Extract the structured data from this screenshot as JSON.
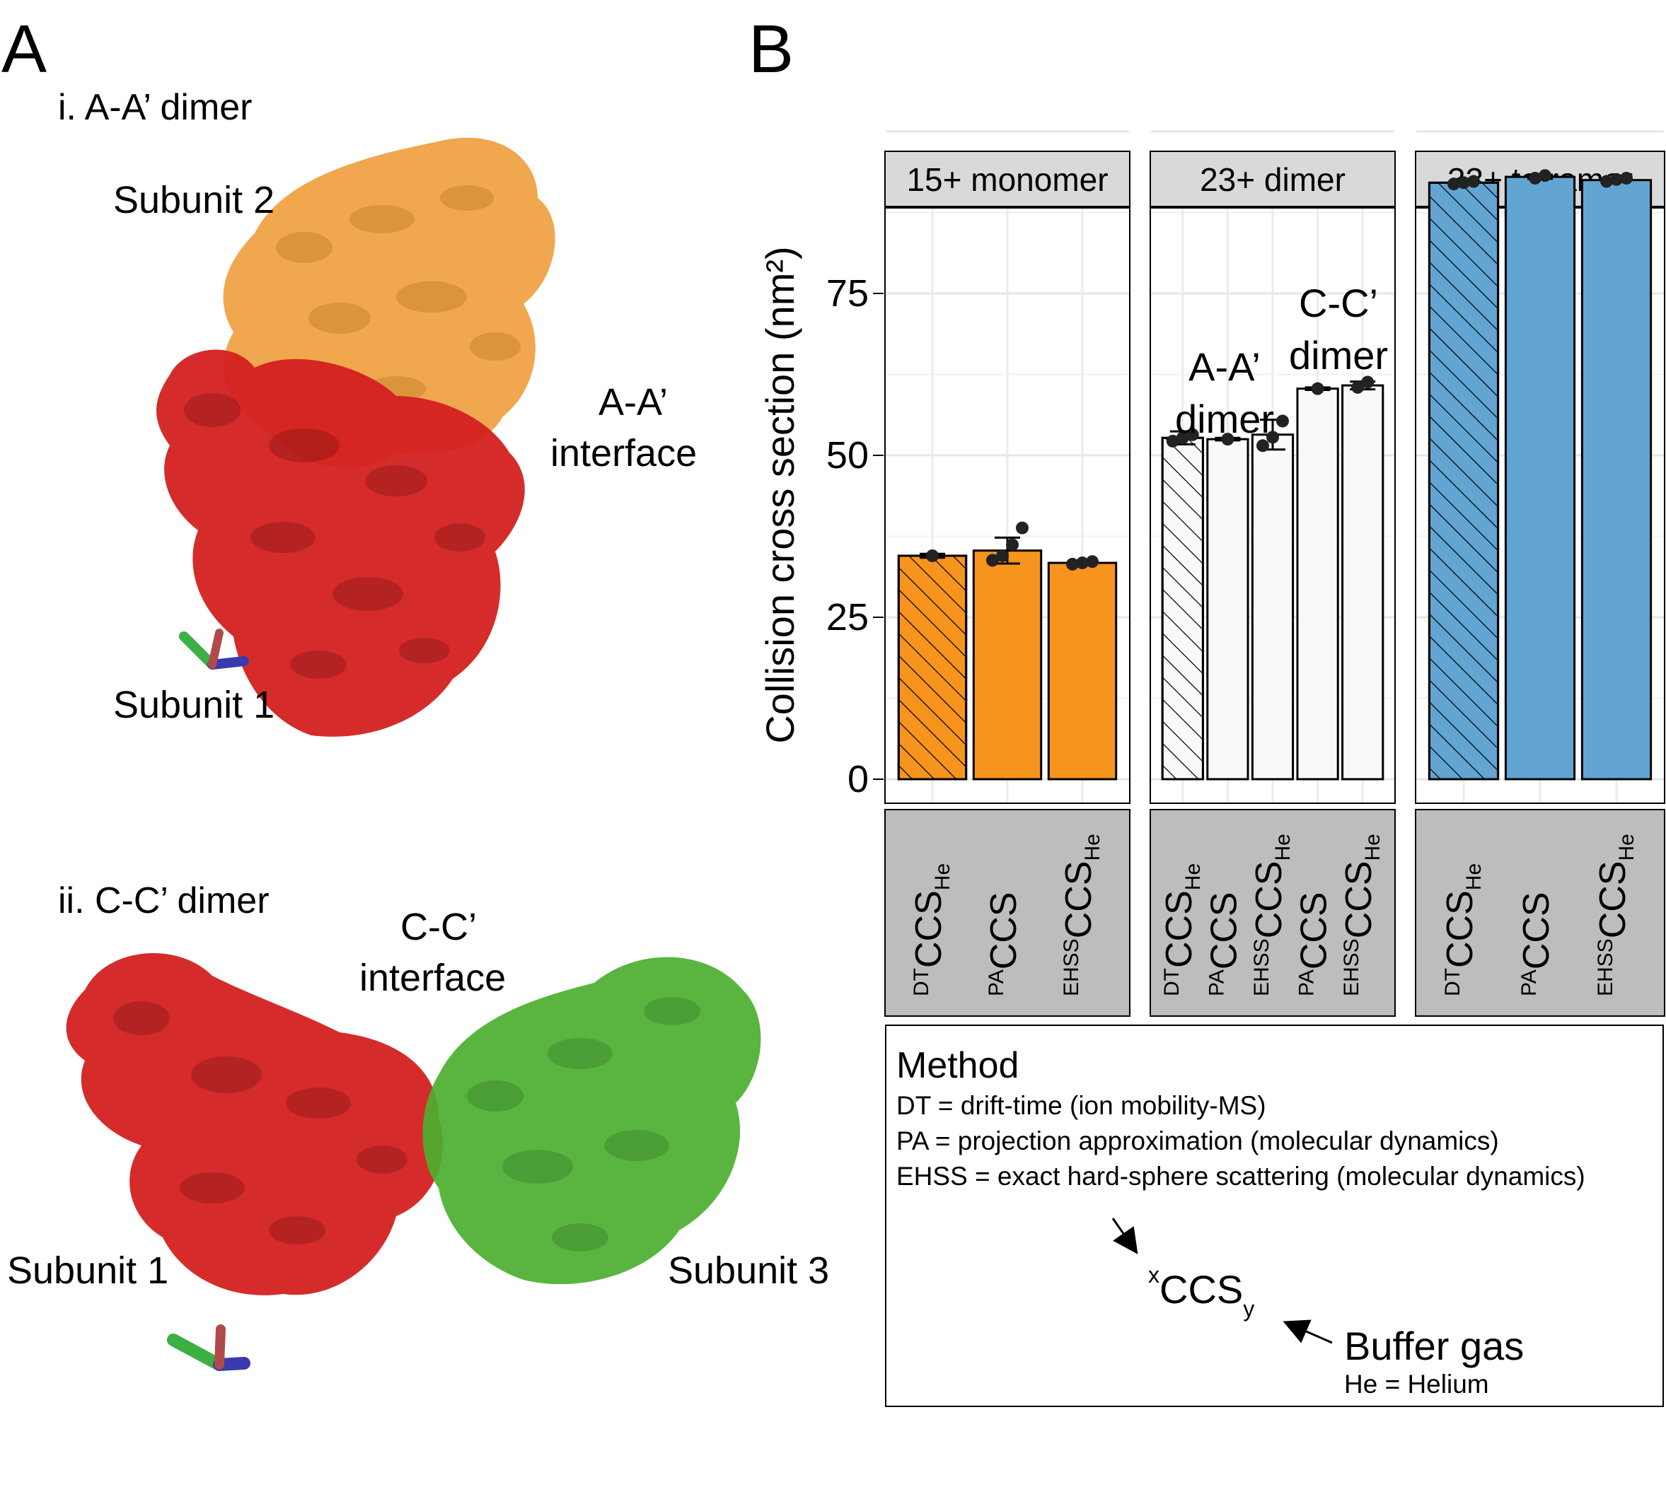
{
  "panel_a": {
    "letter": "A",
    "dimer1": {
      "title": "i. A-A’ dimer",
      "subunit_top": "Subunit 2",
      "subunit_bottom": "Subunit 1",
      "interface_line1": "A-A’",
      "interface_line2": "interface",
      "colors": {
        "subunit_2": "#f0a040",
        "subunit_1": "#d42020"
      }
    },
    "dimer2": {
      "title": "ii. C-C’ dimer",
      "interface_line1": "C-C’",
      "interface_line2": "interface",
      "subunit_left": "Subunit 1",
      "subunit_right": "Subunit 3",
      "colors": {
        "subunit_1": "#d42020",
        "subunit_3": "#4caf30"
      }
    }
  },
  "panel_b": {
    "letter": "B"
  },
  "chart_data": {
    "type": "bar",
    "ylabel": "Collision cross section (nm²)",
    "ylim": [
      0,
      100
    ],
    "yticks": [
      0,
      25,
      50,
      75
    ],
    "grid": true,
    "facets": [
      {
        "title": "15+ monomer",
        "bars": [
          {
            "method": "DT",
            "gas": "He",
            "value": 34.5,
            "error": 0.3,
            "points": [
              34.5
            ],
            "fill": "#f7941d",
            "hatched": true
          },
          {
            "method": "PA",
            "gas": "",
            "value": 35.3,
            "error": 2.0,
            "points": [
              33.8,
              34.5,
              36.2,
              38.8
            ],
            "fill": "#f7941d",
            "hatched": false
          },
          {
            "method": "EHSS",
            "gas": "He",
            "value": 33.4,
            "error": 0.3,
            "points": [
              33.2,
              33.4,
              33.6
            ],
            "fill": "#f7941d",
            "hatched": false
          }
        ]
      },
      {
        "title": "23+ dimer",
        "annotation_aa_line1": "A-A’",
        "annotation_aa_line2": "dimer",
        "annotation_cc_line1": "C-C’",
        "annotation_cc_line2": "dimer",
        "bars": [
          {
            "method": "DT",
            "gas": "He",
            "value": 52.7,
            "error": 1.0,
            "points": [
              52.2,
              52.7,
              53.2
            ],
            "fill": "#f8f9fb",
            "hatched": true
          },
          {
            "method": "PA",
            "gas": "",
            "value": 52.5,
            "error": 0.2,
            "points": [
              52.5
            ],
            "fill": "#f8f9fb",
            "hatched": false
          },
          {
            "method": "EHSS",
            "gas": "He",
            "value": 53.2,
            "error": 2.3,
            "points": [
              51.5,
              52.8,
              55.3
            ],
            "fill": "#f8f9fb",
            "hatched": false
          },
          {
            "method": "PA",
            "gas": "",
            "value": 60.3,
            "error": 0.2,
            "points": [
              60.3
            ],
            "fill": "#f8f9fb",
            "hatched": false
          },
          {
            "method": "EHSS",
            "gas": "He",
            "value": 60.8,
            "error": 0.6,
            "points": [
              60.5,
              61.3
            ],
            "fill": "#f8f9fb",
            "hatched": false
          }
        ]
      },
      {
        "title": "33+ tetramer",
        "bars": [
          {
            "method": "DT",
            "gas": "He",
            "value": 92.1,
            "error": 0.3,
            "points": [
              91.9,
              92.1,
              92.3
            ],
            "fill": "#62a5d2",
            "hatched": true
          },
          {
            "method": "PA",
            "gas": "",
            "value": 93.0,
            "error": 0.3,
            "points": [
              92.8,
              93.2
            ],
            "fill": "#62a5d2",
            "hatched": false
          },
          {
            "method": "EHSS",
            "gas": "He",
            "value": 92.5,
            "error": 0.3,
            "points": [
              92.3,
              92.6,
              92.8
            ],
            "fill": "#62a5d2",
            "hatched": false
          }
        ]
      }
    ]
  },
  "legend": {
    "title": "Method",
    "lines": [
      "DT = drift-time (ion mobility-MS)",
      "PA = projection approximation (molecular dynamics)",
      "EHSS = exact hard-sphere scattering (molecular dynamics)"
    ],
    "formula_base": "CCS",
    "formula_sup": "x",
    "formula_sub": "y",
    "buffer_label": "Buffer gas",
    "buffer_sub": "He = Helium"
  }
}
